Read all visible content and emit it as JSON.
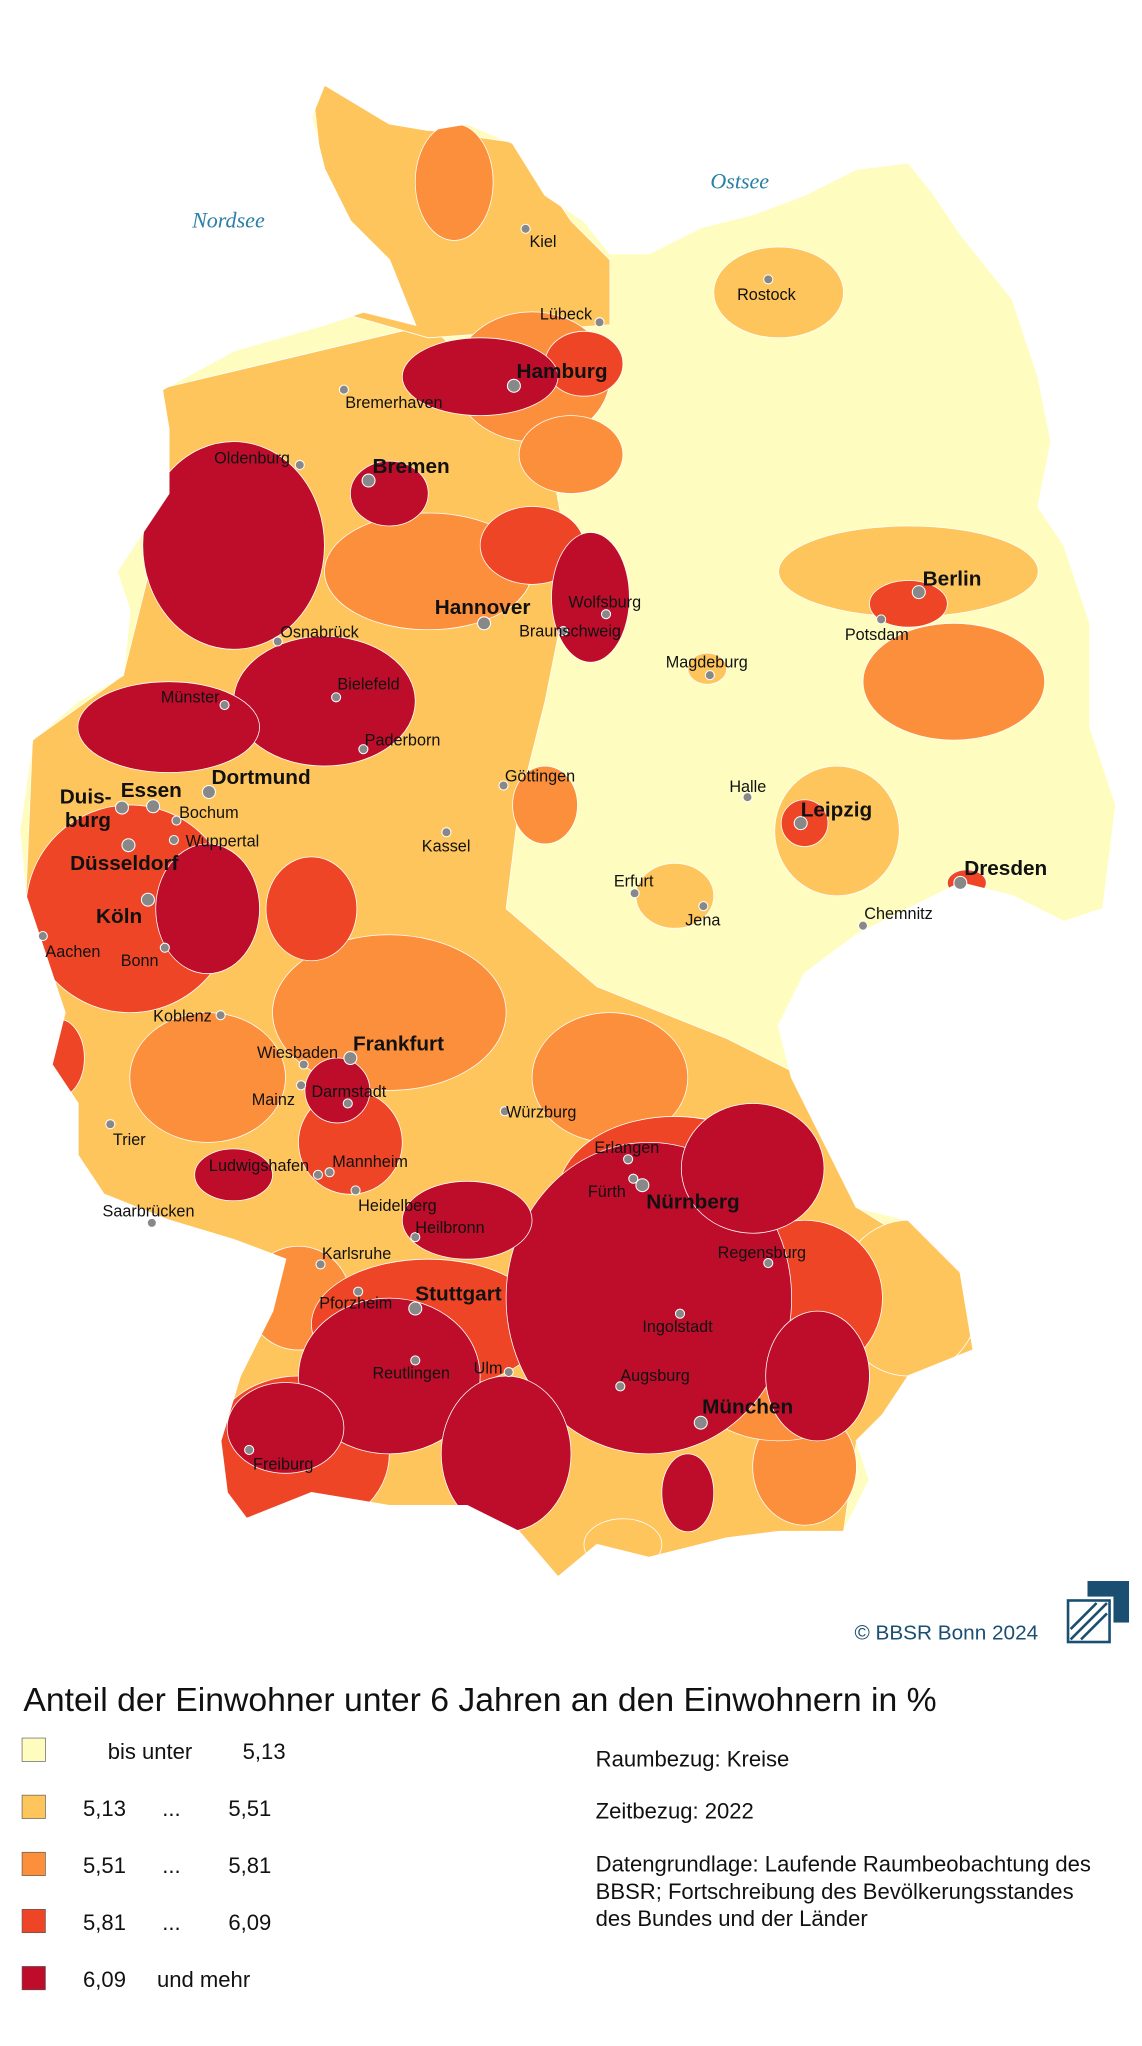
{
  "map": {
    "seas": [
      "Nordsee",
      "Ostsee"
    ],
    "major_cities": [
      "Hamburg",
      "Bremen",
      "Hannover",
      "Berlin",
      "Leipzig",
      "Dresden",
      "Dortmund",
      "Essen",
      [
        "Duis-",
        "burg"
      ],
      "Düsseldorf",
      "Köln",
      "Frankfurt",
      "Nürnberg",
      "Stuttgart",
      "München"
    ],
    "cities": [
      "Kiel",
      "Lübeck",
      "Rostock",
      "Bremerhaven",
      "Oldenburg",
      "Wolfsburg",
      "Braunschweig",
      "Potsdam",
      "Magdeburg",
      "Osnabrück",
      "Bielefeld",
      "Münster",
      "Paderborn",
      "Göttingen",
      "Halle",
      "Bochum",
      "Wuppertal",
      "Kassel",
      "Erfurt",
      "Jena",
      "Chemnitz",
      "Aachen",
      "Bonn",
      "Koblenz",
      "Wiesbaden",
      "Mainz",
      "Darmstadt",
      "Würzburg",
      "Erlangen",
      "Fürth",
      "Trier",
      "Mannheim",
      "Ludwigshafen",
      "Heidelberg",
      "Saarbrücken",
      "Heilbronn",
      "Regensburg",
      "Karlsruhe",
      "Pforzheim",
      "Ingolstadt",
      "Reutlingen",
      "Ulm",
      "Augsburg",
      "Freiburg"
    ]
  },
  "copyright": "© BBSR Bonn 2024",
  "legend": {
    "title": "Anteil der Einwohner unter 6 Jahren an den Einwohnern in %",
    "classes": [
      {
        "color": "#fefdbf",
        "label": "bis unter",
        "upper": "5,13"
      },
      {
        "color": "#fdc55c",
        "lower": "5,13",
        "sep": "...",
        "upper": "5,51"
      },
      {
        "color": "#fb8f3c",
        "lower": "5,51",
        "sep": "...",
        "upper": "5,81"
      },
      {
        "color": "#ee4526",
        "lower": "5,81",
        "sep": "...",
        "upper": "6,09"
      },
      {
        "color": "#bd0d2b",
        "lower": "6,09",
        "label": "und mehr"
      }
    ]
  },
  "notes": {
    "raumbezug": "Raumbezug: Kreise",
    "zeitbezug": "Zeitbezug: 2022",
    "datengrundlage": [
      "Datengrundlage: Laufende Raumbeobachtung des",
      "BBSR; Fortschreibung des Bevölkerungsstandes",
      "des Bundes und der Länder"
    ]
  }
}
